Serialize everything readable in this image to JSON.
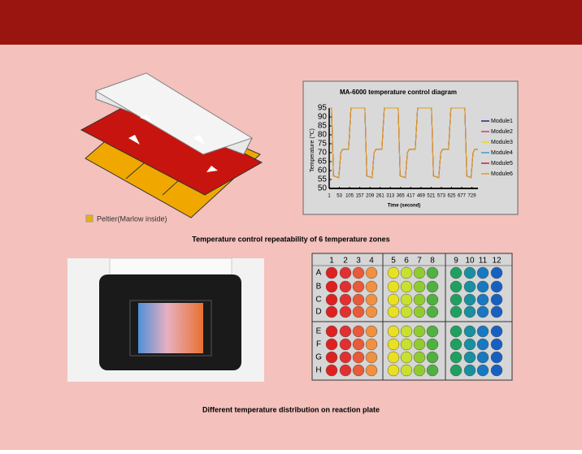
{
  "illustration": {
    "legend": "Peltier(Marlow inside)"
  },
  "chart_data": {
    "type": "line",
    "title": "MA-6000 temperature control diagram",
    "y_label": "Temperature (℃)",
    "x_label": "Time (second)",
    "x": [
      1,
      13,
      23,
      50,
      60,
      70,
      100,
      112,
      171,
      183,
      193,
      220,
      230,
      240,
      270,
      282,
      341,
      353,
      363,
      390,
      400,
      410,
      440,
      452,
      511,
      523,
      533,
      560,
      570,
      580,
      610,
      622,
      681,
      693,
      703,
      725,
      735,
      745,
      760
    ],
    "series": [
      {
        "name": "Module1",
        "color": "#1f2a7a",
        "values": [
          95,
          95,
          57,
          56,
          70,
          72,
          72,
          95,
          95,
          95,
          57,
          56,
          70,
          72,
          72,
          95,
          95,
          95,
          57,
          56,
          70,
          72,
          72,
          95,
          95,
          95,
          57,
          56,
          70,
          72,
          72,
          95,
          95,
          95,
          57,
          56,
          70,
          72,
          72
        ]
      },
      {
        "name": "Module2",
        "color": "#e0308a",
        "values": [
          95,
          95,
          57,
          56,
          70,
          72,
          72,
          95,
          95,
          95,
          57,
          56,
          70,
          72,
          72,
          95,
          95,
          95,
          57,
          56,
          70,
          72,
          72,
          95,
          95,
          95,
          57,
          56,
          70,
          72,
          72,
          95,
          95,
          95,
          57,
          56,
          70,
          72,
          72
        ]
      },
      {
        "name": "Module3",
        "color": "#e8d820",
        "values": [
          95,
          95,
          57,
          56,
          70,
          72,
          72,
          95,
          95,
          95,
          57,
          56,
          70,
          72,
          72,
          95,
          95,
          95,
          57,
          56,
          70,
          72,
          72,
          95,
          95,
          95,
          57,
          56,
          70,
          72,
          72,
          95,
          95,
          95,
          57,
          56,
          70,
          72,
          72
        ]
      },
      {
        "name": "Module4",
        "color": "#3a9ed0",
        "values": [
          95,
          95,
          57,
          56,
          70,
          72,
          72,
          95,
          95,
          95,
          57,
          56,
          70,
          72,
          72,
          95,
          95,
          95,
          57,
          56,
          70,
          72,
          72,
          95,
          95,
          95,
          57,
          56,
          70,
          72,
          72,
          95,
          95,
          95,
          57,
          56,
          70,
          72,
          72
        ]
      },
      {
        "name": "Module5",
        "color": "#d02030",
        "values": [
          95,
          95,
          57,
          56,
          70,
          72,
          72,
          95,
          95,
          95,
          57,
          56,
          70,
          72,
          72,
          95,
          95,
          95,
          57,
          56,
          70,
          72,
          72,
          95,
          95,
          95,
          57,
          56,
          70,
          72,
          72,
          95,
          95,
          95,
          57,
          56,
          70,
          72,
          72
        ]
      },
      {
        "name": "Module6",
        "color": "#e0a020",
        "values": [
          95,
          95,
          57,
          56,
          70,
          72,
          72,
          95,
          95,
          95,
          57,
          56,
          70,
          72,
          72,
          95,
          95,
          95,
          57,
          56,
          70,
          72,
          72,
          95,
          95,
          95,
          57,
          56,
          70,
          72,
          72,
          95,
          95,
          95,
          57,
          56,
          70,
          72,
          72
        ]
      }
    ],
    "xlim": [
      1,
      760
    ],
    "xticks": [
      1,
      53,
      105,
      157,
      209,
      261,
      313,
      365,
      417,
      469,
      521,
      573,
      625,
      677,
      729
    ],
    "ylim": [
      50,
      95
    ],
    "yticks": [
      50,
      55,
      60,
      65,
      70,
      75,
      80,
      85,
      90,
      95
    ]
  },
  "captions": [
    "Temperature control repeatability of 6 temperature zones",
    "Different temperature distribution on reaction plate"
  ],
  "plate": {
    "columns": [
      "1",
      "2",
      "3",
      "4",
      "5",
      "6",
      "7",
      "8",
      "9",
      "10",
      "11",
      "12"
    ],
    "rows": [
      "A",
      "B",
      "C",
      "D",
      "E",
      "F",
      "G",
      "H"
    ],
    "column_colors": [
      "#e02020",
      "#e23030",
      "#e85a3a",
      "#f09040",
      "#e8e020",
      "#c8e030",
      "#90cc30",
      "#50b040",
      "#20a060",
      "#1890a0",
      "#1878c0",
      "#1860c0"
    ]
  }
}
